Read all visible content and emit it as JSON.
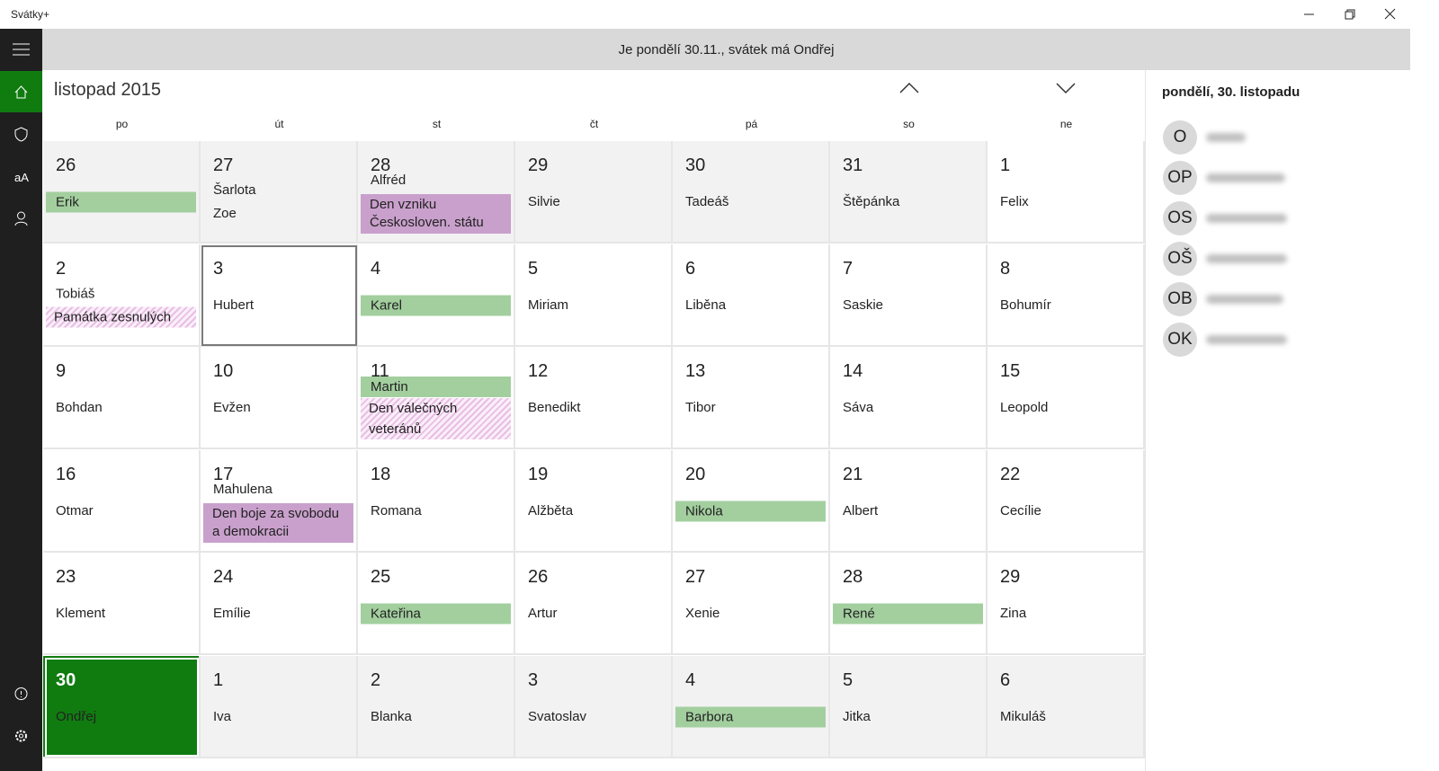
{
  "window": {
    "title": "Svátky+"
  },
  "banner": "Je pondělí 30.11., svátek má Ondřej",
  "calendar": {
    "month": "listopad 2015",
    "weekdays": [
      "po",
      "út",
      "st",
      "čt",
      "pá",
      "so",
      "ne"
    ],
    "weeks": [
      [
        {
          "day": 26,
          "muted": true,
          "items": [
            {
              "text": "Erik",
              "style": "name"
            }
          ]
        },
        {
          "day": 27,
          "muted": true,
          "items": [
            {
              "text": "Šarlota",
              "style": "plain"
            },
            {
              "text": "Zoe",
              "style": "plain"
            }
          ]
        },
        {
          "day": 28,
          "muted": true,
          "items": [
            {
              "text": "Alfréd",
              "style": "plain"
            },
            {
              "text": "Den vzniku Českosloven. státu",
              "style": "holiday"
            }
          ]
        },
        {
          "day": 29,
          "muted": true,
          "items": [
            {
              "text": "Silvie",
              "style": "plain"
            }
          ]
        },
        {
          "day": 30,
          "muted": true,
          "items": [
            {
              "text": "Tadeáš",
              "style": "plain"
            }
          ]
        },
        {
          "day": 31,
          "muted": true,
          "items": [
            {
              "text": "Štěpánka",
              "style": "plain"
            }
          ]
        },
        {
          "day": 1,
          "items": [
            {
              "text": "Felix",
              "style": "plain"
            }
          ]
        }
      ],
      [
        {
          "day": 2,
          "items": [
            {
              "text": "Tobiáš",
              "style": "plain"
            },
            {
              "text": "Památka zesnulých",
              "style": "memorial"
            }
          ]
        },
        {
          "day": 3,
          "selected": true,
          "items": [
            {
              "text": "Hubert",
              "style": "plain"
            }
          ]
        },
        {
          "day": 4,
          "items": [
            {
              "text": "Karel",
              "style": "name"
            }
          ]
        },
        {
          "day": 5,
          "items": [
            {
              "text": "Miriam",
              "style": "plain"
            }
          ]
        },
        {
          "day": 6,
          "items": [
            {
              "text": "Liběna",
              "style": "plain"
            }
          ]
        },
        {
          "day": 7,
          "items": [
            {
              "text": "Saskie",
              "style": "plain"
            }
          ]
        },
        {
          "day": 8,
          "items": [
            {
              "text": "Bohumír",
              "style": "plain"
            }
          ]
        }
      ],
      [
        {
          "day": 9,
          "items": [
            {
              "text": "Bohdan",
              "style": "plain"
            }
          ]
        },
        {
          "day": 10,
          "items": [
            {
              "text": "Evžen",
              "style": "plain"
            }
          ]
        },
        {
          "day": 11,
          "items": [
            {
              "text": "Martin",
              "style": "name"
            },
            {
              "text": "Den válečných veteránů",
              "style": "memorial"
            }
          ]
        },
        {
          "day": 12,
          "items": [
            {
              "text": "Benedikt",
              "style": "plain"
            }
          ]
        },
        {
          "day": 13,
          "items": [
            {
              "text": "Tibor",
              "style": "plain"
            }
          ]
        },
        {
          "day": 14,
          "items": [
            {
              "text": "Sáva",
              "style": "plain"
            }
          ]
        },
        {
          "day": 15,
          "items": [
            {
              "text": "Leopold",
              "style": "plain"
            }
          ]
        }
      ],
      [
        {
          "day": 16,
          "items": [
            {
              "text": "Otmar",
              "style": "plain"
            }
          ]
        },
        {
          "day": 17,
          "items": [
            {
              "text": "Mahulena",
              "style": "plain"
            },
            {
              "text": "Den boje za svobodu a demokracii",
              "style": "holiday"
            }
          ]
        },
        {
          "day": 18,
          "items": [
            {
              "text": "Romana",
              "style": "plain"
            }
          ]
        },
        {
          "day": 19,
          "items": [
            {
              "text": "Alžběta",
              "style": "plain"
            }
          ]
        },
        {
          "day": 20,
          "items": [
            {
              "text": "Nikola",
              "style": "name"
            }
          ]
        },
        {
          "day": 21,
          "items": [
            {
              "text": "Albert",
              "style": "plain"
            }
          ]
        },
        {
          "day": 22,
          "items": [
            {
              "text": "Cecílie",
              "style": "plain"
            }
          ]
        }
      ],
      [
        {
          "day": 23,
          "items": [
            {
              "text": "Klement",
              "style": "plain"
            }
          ]
        },
        {
          "day": 24,
          "items": [
            {
              "text": "Emílie",
              "style": "plain"
            }
          ]
        },
        {
          "day": 25,
          "items": [
            {
              "text": "Kateřina",
              "style": "name"
            }
          ]
        },
        {
          "day": 26,
          "items": [
            {
              "text": "Artur",
              "style": "plain"
            }
          ]
        },
        {
          "day": 27,
          "items": [
            {
              "text": "Xenie",
              "style": "plain"
            }
          ]
        },
        {
          "day": 28,
          "items": [
            {
              "text": "René",
              "style": "name"
            }
          ]
        },
        {
          "day": 29,
          "items": [
            {
              "text": "Zina",
              "style": "plain"
            }
          ]
        }
      ],
      [
        {
          "day": 30,
          "today": true,
          "items": [
            {
              "text": "Ondřej",
              "style": "plain"
            }
          ]
        },
        {
          "day": 1,
          "muted": true,
          "items": [
            {
              "text": "Iva",
              "style": "plain"
            }
          ]
        },
        {
          "day": 2,
          "muted": true,
          "items": [
            {
              "text": "Blanka",
              "style": "plain"
            }
          ]
        },
        {
          "day": 3,
          "muted": true,
          "items": [
            {
              "text": "Svatoslav",
              "style": "plain"
            }
          ]
        },
        {
          "day": 4,
          "muted": true,
          "items": [
            {
              "text": "Barbora",
              "style": "name"
            }
          ]
        },
        {
          "day": 5,
          "muted": true,
          "items": [
            {
              "text": "Jitka",
              "style": "plain"
            }
          ]
        },
        {
          "day": 6,
          "muted": true,
          "items": [
            {
              "text": "Mikuláš",
              "style": "plain"
            }
          ]
        }
      ]
    ]
  },
  "side": {
    "heading": "pondělí, 30. listopadu",
    "contacts": [
      {
        "initials": "O"
      },
      {
        "initials": "OP"
      },
      {
        "initials": "OS"
      },
      {
        "initials": "OŠ"
      },
      {
        "initials": "OB"
      },
      {
        "initials": "OK"
      }
    ]
  }
}
